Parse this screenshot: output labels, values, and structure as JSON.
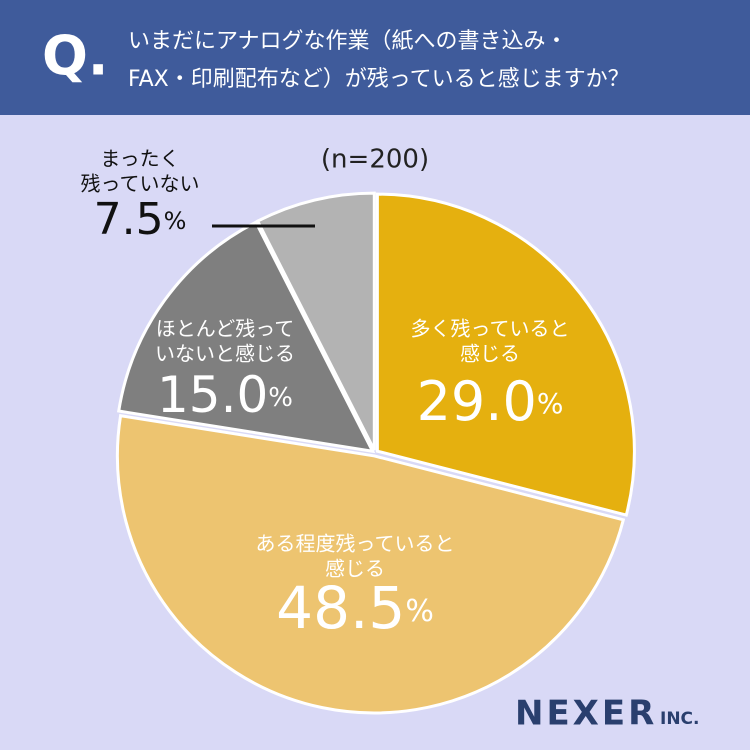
{
  "header": {
    "marker": "Q.",
    "title_lines": [
      "いまだにアナログな作業（紙への書き込み・",
      "FAX・印刷配布など）が残っていると感じますか？"
    ]
  },
  "chart_data": {
    "type": "pie",
    "subtitle": "(n=200)",
    "categories": [
      [
        "多く残っていると",
        "感じる"
      ],
      [
        "ある程度残っていると",
        "感じる"
      ],
      [
        "ほとんど残って",
        "いないと感じる"
      ],
      [
        "まったく",
        "残っていない"
      ]
    ],
    "values": [
      29.0,
      48.5,
      15.0,
      7.5
    ],
    "value_labels": [
      "29.0%",
      "48.5%",
      "15.0%",
      "7.5%"
    ],
    "colors": [
      "#e5b00f",
      "#edc470",
      "#7f7f7f",
      "#b3b3b3"
    ]
  },
  "brand": {
    "name": "NEXER",
    "suffix": "INC."
  }
}
